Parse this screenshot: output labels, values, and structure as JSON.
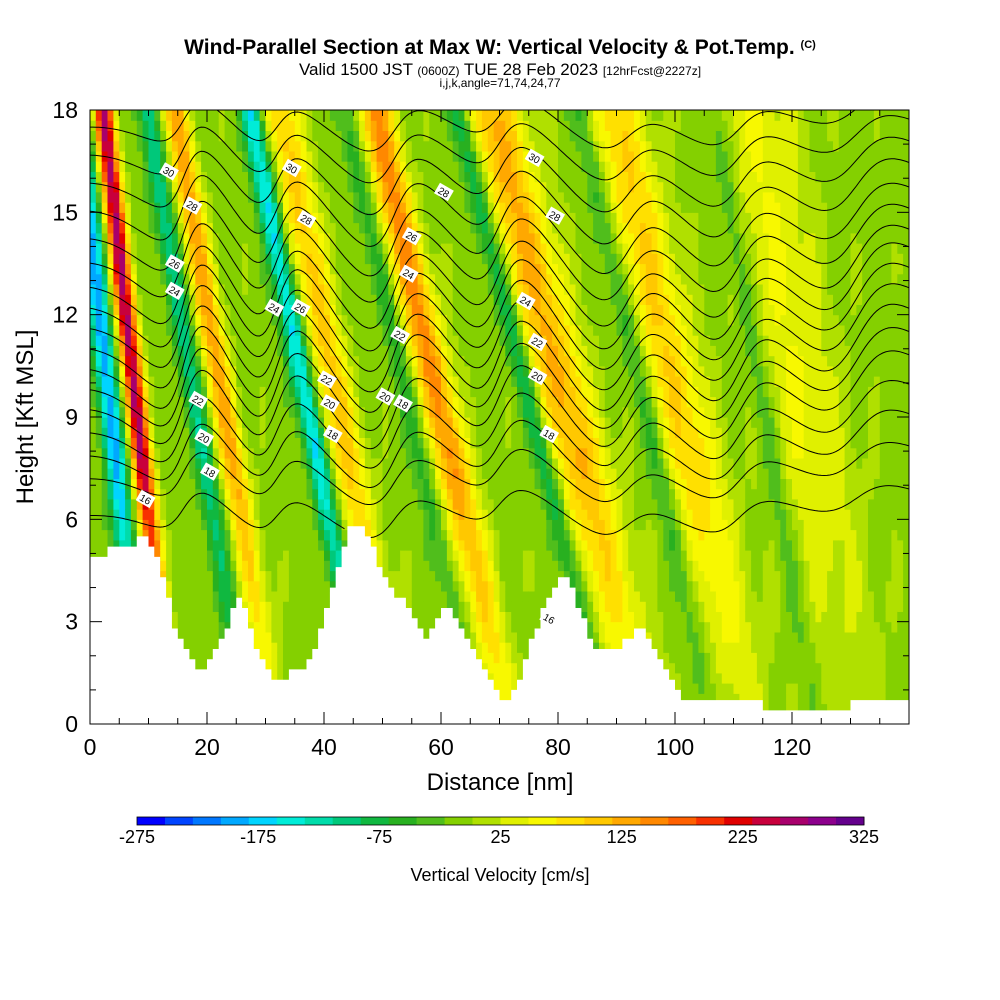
{
  "title": {
    "main": "Wind-Parallel Section at Max W: Vertical Velocity & Pot.Temp.",
    "copyright": "(C)",
    "valid_prefix": "Valid 1500 JST",
    "valid_utc": "(0600Z)",
    "valid_date": "TUE 28 Feb 2023",
    "forecast": "[12hrFcst@2227z]",
    "indices": "i,j,k,angle=71,74,24,77"
  },
  "chart_data": {
    "type": "heatmap",
    "xlabel": "Distance [nm]",
    "ylabel": "Height [Kft MSL]",
    "xlim": [
      0,
      140
    ],
    "ylim": [
      0,
      18
    ],
    "x_ticks": [
      "0",
      "20",
      "40",
      "60",
      "80",
      "100",
      "120"
    ],
    "y_ticks": [
      "0",
      "3",
      "6",
      "9",
      "12",
      "15",
      "18"
    ],
    "colorbar": {
      "label": "Vertical Velocity [cm/s]",
      "min": -275,
      "max": 325,
      "step": 25,
      "tick_labels": [
        "-275",
        "-175",
        "-75",
        "25",
        "125",
        "225",
        "325"
      ],
      "colors": [
        "#0000ff",
        "#0044ff",
        "#0077ff",
        "#00a8ff",
        "#00d4ff",
        "#00ecd8",
        "#00dcaa",
        "#00c87a",
        "#10b840",
        "#28b020",
        "#50be1c",
        "#84d000",
        "#b0e000",
        "#e0f000",
        "#f8f800",
        "#ffe000",
        "#ffc800",
        "#ffa800",
        "#ff8800",
        "#ff6000",
        "#f83000",
        "#e00000",
        "#c8003c",
        "#a8006c",
        "#8c008c",
        "#64008c"
      ]
    },
    "terrain_kft": [
      [
        0,
        4.9
      ],
      [
        1,
        4.9
      ],
      [
        2,
        4.9
      ],
      [
        3,
        5.2
      ],
      [
        5,
        5.2
      ],
      [
        7,
        5.2
      ],
      [
        8,
        5.5
      ],
      [
        9,
        5.5
      ],
      [
        10,
        5.2
      ],
      [
        11,
        4.9
      ],
      [
        12,
        4.3
      ],
      [
        13,
        3.7
      ],
      [
        14,
        2.8
      ],
      [
        15,
        2.5
      ],
      [
        16,
        2.2
      ],
      [
        17,
        1.9
      ],
      [
        18,
        1.6
      ],
      [
        19,
        1.6
      ],
      [
        20,
        1.9
      ],
      [
        21,
        2.2
      ],
      [
        22,
        2.5
      ],
      [
        23,
        2.8
      ],
      [
        24,
        3.4
      ],
      [
        25,
        3.7
      ],
      [
        26,
        3.4
      ],
      [
        27,
        2.8
      ],
      [
        28,
        2.2
      ],
      [
        29,
        1.9
      ],
      [
        30,
        1.6
      ],
      [
        31,
        1.3
      ],
      [
        33,
        1.3
      ],
      [
        34,
        1.6
      ],
      [
        36,
        1.6
      ],
      [
        37,
        1.9
      ],
      [
        38,
        2.2
      ],
      [
        39,
        2.8
      ],
      [
        40,
        3.4
      ],
      [
        41,
        4.0
      ],
      [
        42,
        4.6
      ],
      [
        43,
        5.2
      ],
      [
        44,
        5.8
      ],
      [
        46,
        5.8
      ],
      [
        47,
        5.5
      ],
      [
        48,
        5.2
      ],
      [
        49,
        4.6
      ],
      [
        50,
        4.3
      ],
      [
        51,
        4.0
      ],
      [
        52,
        3.7
      ],
      [
        53,
        3.7
      ],
      [
        54,
        3.4
      ],
      [
        55,
        3.1
      ],
      [
        56,
        2.8
      ],
      [
        57,
        2.5
      ],
      [
        58,
        2.8
      ],
      [
        59,
        3.1
      ],
      [
        60,
        3.4
      ],
      [
        61,
        3.4
      ],
      [
        62,
        3.1
      ],
      [
        63,
        2.8
      ],
      [
        64,
        2.5
      ],
      [
        65,
        2.2
      ],
      [
        66,
        1.9
      ],
      [
        67,
        1.6
      ],
      [
        68,
        1.3
      ],
      [
        69,
        1.0
      ],
      [
        70,
        0.7
      ],
      [
        72,
        1.0
      ],
      [
        73,
        1.3
      ],
      [
        74,
        1.9
      ],
      [
        75,
        2.5
      ],
      [
        76,
        2.8
      ],
      [
        77,
        3.4
      ],
      [
        78,
        3.7
      ],
      [
        79,
        4.0
      ],
      [
        80,
        4.3
      ],
      [
        81,
        4.3
      ],
      [
        82,
        4.0
      ],
      [
        83,
        3.4
      ],
      [
        84,
        3.1
      ],
      [
        85,
        2.5
      ],
      [
        86,
        2.2
      ],
      [
        90,
        2.2
      ],
      [
        91,
        2.5
      ],
      [
        92,
        2.5
      ],
      [
        93,
        2.8
      ],
      [
        95,
        2.5
      ],
      [
        96,
        2.2
      ],
      [
        97,
        1.9
      ],
      [
        98,
        1.6
      ],
      [
        99,
        1.3
      ],
      [
        100,
        1.0
      ],
      [
        101,
        0.7
      ],
      [
        105,
        0.7
      ],
      [
        107,
        0.7
      ],
      [
        110,
        0.7
      ],
      [
        111,
        0.7
      ],
      [
        112,
        0.7
      ],
      [
        114,
        0.7
      ],
      [
        115,
        0.4
      ],
      [
        128,
        0.4
      ],
      [
        130,
        0.7
      ],
      [
        140,
        0.7
      ]
    ],
    "cells": [
      {
        "x": 10,
        "tilt": 0.2,
        "w": 1.2,
        "up": 290,
        "down": -200
      },
      {
        "x": 26,
        "tilt": 0.3,
        "w": 1.6,
        "up": 150,
        "down": -110
      },
      {
        "x": 46,
        "tilt": 0.35,
        "w": 2.2,
        "up": 120,
        "down": -175
      },
      {
        "x": 64,
        "tilt": 0.4,
        "w": 2.2,
        "up": 170,
        "down": -60
      },
      {
        "x": 86,
        "tilt": 0.45,
        "w": 3.5,
        "up": 140,
        "down": -110
      },
      {
        "x": 105,
        "tilt": 0.4,
        "w": 3.5,
        "up": 110,
        "down": -65
      },
      {
        "x": 125,
        "tilt": 0.3,
        "w": 5.0,
        "up": 60,
        "down": -50
      }
    ],
    "isentropes": [
      {
        "theta": 16,
        "label": "16",
        "base_kft": 6.2,
        "amp": 0.8
      },
      {
        "theta": 17,
        "label": "",
        "base_kft": 7.3,
        "amp": 1.0
      },
      {
        "theta": 18,
        "label": "18",
        "base_kft": 8.0,
        "amp": 1.3
      },
      {
        "theta": 19,
        "label": "",
        "base_kft": 8.7,
        "amp": 1.5
      },
      {
        "theta": 20,
        "label": "20",
        "base_kft": 9.4,
        "amp": 1.7
      },
      {
        "theta": 21,
        "label": "",
        "base_kft": 10.0,
        "amp": 1.8
      },
      {
        "theta": 22,
        "label": "22",
        "base_kft": 10.6,
        "amp": 1.9
      },
      {
        "theta": 23,
        "label": "",
        "base_kft": 11.2,
        "amp": 1.9
      },
      {
        "theta": 24,
        "label": "24",
        "base_kft": 11.8,
        "amp": 1.9
      },
      {
        "theta": 25,
        "label": "",
        "base_kft": 12.4,
        "amp": 1.9
      },
      {
        "theta": 26,
        "label": "26",
        "base_kft": 13.0,
        "amp": 1.8
      },
      {
        "theta": 27,
        "label": "",
        "base_kft": 13.7,
        "amp": 1.7
      },
      {
        "theta": 28,
        "label": "28",
        "base_kft": 14.4,
        "amp": 1.6
      },
      {
        "theta": 29,
        "label": "",
        "base_kft": 15.2,
        "amp": 1.5
      },
      {
        "theta": 30,
        "label": "30",
        "base_kft": 16.0,
        "amp": 1.3
      },
      {
        "theta": 31,
        "label": "",
        "base_kft": 16.8,
        "amp": 1.1
      },
      {
        "theta": 32,
        "label": "",
        "base_kft": 17.6,
        "amp": 0.9
      }
    ],
    "contour_labels": [
      {
        "text": "30",
        "x": 13.5,
        "y": 16.2
      },
      {
        "text": "28",
        "x": 17.5,
        "y": 15.2
      },
      {
        "text": "26",
        "x": 14.5,
        "y": 13.5
      },
      {
        "text": "24",
        "x": 14.5,
        "y": 12.7
      },
      {
        "text": "22",
        "x": 18.5,
        "y": 9.5
      },
      {
        "text": "20",
        "x": 19.5,
        "y": 8.4
      },
      {
        "text": "18",
        "x": 20.5,
        "y": 7.4
      },
      {
        "text": "16",
        "x": 9.5,
        "y": 6.6
      },
      {
        "text": "30",
        "x": 34.5,
        "y": 16.3
      },
      {
        "text": "28",
        "x": 37.0,
        "y": 14.8
      },
      {
        "text": "24",
        "x": 31.5,
        "y": 12.2
      },
      {
        "text": "26",
        "x": 36.0,
        "y": 12.2
      },
      {
        "text": "22",
        "x": 40.5,
        "y": 10.1
      },
      {
        "text": "20",
        "x": 41.0,
        "y": 9.4
      },
      {
        "text": "18",
        "x": 41.5,
        "y": 8.5
      },
      {
        "text": "26",
        "x": 55.0,
        "y": 14.3
      },
      {
        "text": "24",
        "x": 54.5,
        "y": 13.2
      },
      {
        "text": "22",
        "x": 53.0,
        "y": 11.4
      },
      {
        "text": "20",
        "x": 50.5,
        "y": 9.6
      },
      {
        "text": "18",
        "x": 53.5,
        "y": 9.4
      },
      {
        "text": "28",
        "x": 60.5,
        "y": 15.6
      },
      {
        "text": "30",
        "x": 76.0,
        "y": 16.6
      },
      {
        "text": "28",
        "x": 79.5,
        "y": 14.9
      },
      {
        "text": "24",
        "x": 74.5,
        "y": 12.4
      },
      {
        "text": "22",
        "x": 76.5,
        "y": 11.2
      },
      {
        "text": "20",
        "x": 76.5,
        "y": 10.2
      },
      {
        "text": "18",
        "x": 78.5,
        "y": 8.5
      },
      {
        "text": "16",
        "x": 78.5,
        "y": 3.1
      }
    ]
  }
}
